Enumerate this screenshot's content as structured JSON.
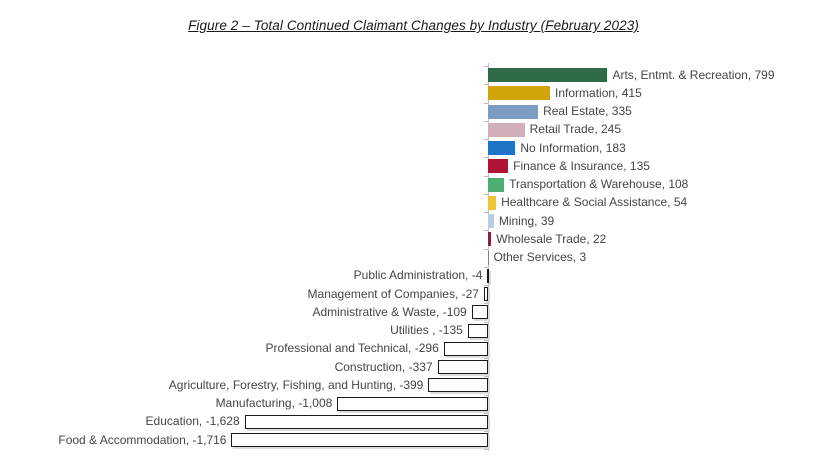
{
  "title": "Figure 2 – Total Continued Claimant Changes by Industry (February 2023)",
  "colors": {
    "axis_line": "#c3c3c3",
    "axis_tick": "#bfbfbf",
    "label_text": "#454545",
    "negative_bar_fill": "#ffffff",
    "negative_bar_border": "#1a1a1a",
    "negative_bar_shadow": "#dcdcdc"
  },
  "chart_data": {
    "type": "bar",
    "orientation": "horizontal",
    "title": "Figure 2 – Total Continued Claimant Changes by Industry (February 2023)",
    "xlabel": "",
    "ylabel": "",
    "xlim": [
      -1800,
      900
    ],
    "grid": false,
    "legend": false,
    "value_labels": "outside-end",
    "categories": [
      "Arts, Entmt. & Recreation",
      "Information",
      "Real Estate",
      "Retail Trade",
      "No Information",
      "Finance & Insurance",
      "Transportation & Warehouse",
      "Healthcare & Social Assistance",
      "Mining",
      "Wholesale Trade",
      "Other Services",
      "Public Administration",
      "Management of Companies",
      "Administrative & Waste",
      "Utilities",
      "Professional and Technical",
      "Construction",
      "Agriculture, Forestry, Fishing, and Hunting",
      "Manufacturing",
      "Education",
      "Food & Accommodation"
    ],
    "values": [
      799,
      415,
      335,
      245,
      183,
      135,
      108,
      54,
      39,
      22,
      3,
      -4,
      -27,
      -109,
      -135,
      -296,
      -337,
      -399,
      -1008,
      -1628,
      -1716
    ],
    "items": [
      {
        "label": "Arts, Entmt. & Recreation, 799",
        "value": 799,
        "color": "#2e6b46"
      },
      {
        "label": "Information, 415",
        "value": 415,
        "color": "#d2a40b"
      },
      {
        "label": "Real Estate, 335",
        "value": 335,
        "color": "#7a9cc2"
      },
      {
        "label": "Retail Trade, 245",
        "value": 245,
        "color": "#d0afb8"
      },
      {
        "label": "No Information, 183",
        "value": 183,
        "color": "#1f74ca"
      },
      {
        "label": "Finance & Insurance, 135",
        "value": 135,
        "color": "#b01335"
      },
      {
        "label": "Transportation & Warehouse, 108",
        "value": 108,
        "color": "#4cae74"
      },
      {
        "label": "Healthcare & Social Assistance, 54",
        "value": 54,
        "color": "#f0c434"
      },
      {
        "label": "Mining, 39",
        "value": 39,
        "color": "#b9cde3"
      },
      {
        "label": "Wholesale Trade, 22",
        "value": 22,
        "color": "#7e2638"
      },
      {
        "label": "Other Services, 3",
        "value": 3,
        "color": "#808080"
      },
      {
        "label": "Public Administration, -4",
        "value": -4,
        "color": null
      },
      {
        "label": "Management of Companies, -27",
        "value": -27,
        "color": null
      },
      {
        "label": "Administrative & Waste, -109",
        "value": -109,
        "color": null
      },
      {
        "label": "Utilities , -135",
        "value": -135,
        "color": null
      },
      {
        "label": "Professional and Technical, -296",
        "value": -296,
        "color": null
      },
      {
        "label": "Construction, -337",
        "value": -337,
        "color": null
      },
      {
        "label": "Agriculture, Forestry, Fishing, and Hunting, -399",
        "value": -399,
        "color": null
      },
      {
        "label": "Manufacturing, -1,008",
        "value": -1008,
        "color": null
      },
      {
        "label": "Education, -1,628",
        "value": -1628,
        "color": null
      },
      {
        "label": "Food & Accommodation, -1,716",
        "value": -1716,
        "color": null
      }
    ]
  }
}
